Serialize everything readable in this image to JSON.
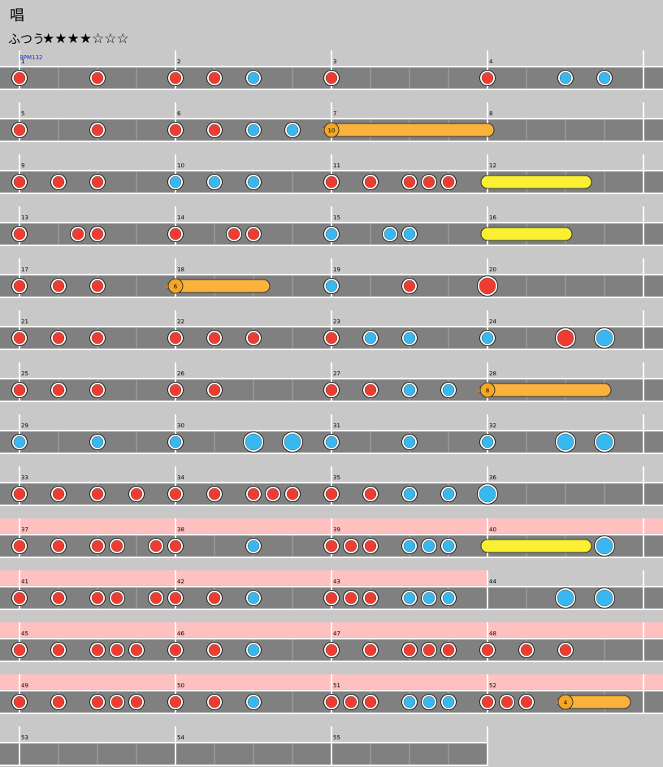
{
  "title": "唱",
  "course": "ふつう",
  "stars": "★★★★☆☆☆",
  "bpm_label": "BPM132",
  "rows": [
    {
      "measures": [
        1,
        2,
        3,
        4
      ],
      "gogo": [
        false,
        false,
        false,
        false
      ],
      "red": [
        0,
        4,
        8,
        10,
        16,
        24
      ],
      "blue": [
        12,
        28,
        30
      ],
      "big_red": [],
      "big_blue": [],
      "rolls": []
    },
    {
      "measures": [
        5,
        6,
        7,
        8
      ],
      "gogo": [
        false,
        false,
        false,
        false
      ],
      "red": [
        0,
        4,
        8,
        10
      ],
      "blue": [
        12,
        14
      ],
      "big_red": [],
      "big_blue": [],
      "rolls": [
        {
          "kind": "balloon",
          "start": 16,
          "end": 24,
          "count": 10
        }
      ]
    },
    {
      "measures": [
        9,
        10,
        11,
        12
      ],
      "gogo": [
        false,
        false,
        false,
        false
      ],
      "red": [
        0,
        2,
        4,
        16,
        18,
        20,
        21,
        22
      ],
      "blue": [
        8,
        10,
        12
      ],
      "big_red": [],
      "big_blue": [],
      "rolls": [
        {
          "kind": "roll",
          "start": 24,
          "end": 29
        }
      ]
    },
    {
      "measures": [
        13,
        14,
        15,
        16
      ],
      "gogo": [
        false,
        false,
        false,
        false
      ],
      "red": [
        0,
        3,
        4,
        8,
        11,
        12
      ],
      "blue": [
        16,
        19,
        20
      ],
      "big_red": [],
      "big_blue": [],
      "rolls": [
        {
          "kind": "roll",
          "start": 24,
          "end": 28
        }
      ]
    },
    {
      "measures": [
        17,
        18,
        19,
        20
      ],
      "gogo": [
        false,
        false,
        false,
        false
      ],
      "red": [
        0,
        2,
        4,
        20
      ],
      "blue": [
        16
      ],
      "big_red": [
        24
      ],
      "big_blue": [],
      "rolls": [
        {
          "kind": "balloon",
          "start": 8,
          "end": 12.5,
          "count": 6
        }
      ]
    },
    {
      "measures": [
        21,
        22,
        23,
        24
      ],
      "gogo": [
        false,
        false,
        false,
        false
      ],
      "red": [
        0,
        2,
        4,
        8,
        10,
        12,
        16
      ],
      "blue": [
        18,
        20,
        24
      ],
      "big_red": [
        28
      ],
      "big_blue": [
        30
      ],
      "rolls": []
    },
    {
      "measures": [
        25,
        26,
        27,
        28
      ],
      "gogo": [
        false,
        false,
        false,
        false
      ],
      "red": [
        0,
        2,
        4,
        8,
        10,
        16,
        18
      ],
      "blue": [
        20,
        22
      ],
      "big_red": [],
      "big_blue": [],
      "rolls": [
        {
          "kind": "balloon",
          "start": 24,
          "end": 30,
          "count": 8
        }
      ]
    },
    {
      "measures": [
        29,
        30,
        31,
        32
      ],
      "gogo": [
        false,
        false,
        false,
        false
      ],
      "red": [],
      "blue": [
        0,
        4,
        8,
        16,
        20,
        24
      ],
      "big_red": [],
      "big_blue": [
        12,
        14,
        28,
        30
      ],
      "rolls": []
    },
    {
      "measures": [
        33,
        34,
        35,
        36
      ],
      "gogo": [
        false,
        false,
        false,
        false
      ],
      "red": [
        0,
        2,
        4,
        6,
        8,
        10,
        12,
        13,
        14,
        16,
        18
      ],
      "blue": [
        20,
        22
      ],
      "big_red": [],
      "big_blue": [
        24
      ],
      "rolls": []
    },
    {
      "measures": [
        37,
        38,
        39,
        40
      ],
      "gogo": [
        true,
        true,
        true,
        true
      ],
      "red": [
        0,
        2,
        4,
        5,
        7,
        8,
        16,
        17,
        18
      ],
      "blue": [
        12,
        20,
        21,
        22
      ],
      "big_red": [],
      "big_blue": [
        30
      ],
      "rolls": [
        {
          "kind": "roll",
          "start": 24,
          "end": 29
        }
      ]
    },
    {
      "measures": [
        41,
        42,
        43,
        44
      ],
      "gogo": [
        true,
        true,
        true,
        false
      ],
      "red": [
        0,
        2,
        4,
        5,
        7,
        8,
        10,
        16,
        17,
        18
      ],
      "blue": [
        12,
        20,
        21,
        22
      ],
      "big_red": [],
      "big_blue": [
        28,
        30
      ],
      "rolls": []
    },
    {
      "measures": [
        45,
        46,
        47,
        48
      ],
      "gogo": [
        true,
        true,
        true,
        true
      ],
      "red": [
        0,
        2,
        4,
        5,
        6,
        8,
        10,
        16,
        18,
        20,
        21,
        22,
        24,
        26,
        28
      ],
      "blue": [
        12
      ],
      "big_red": [],
      "big_blue": [],
      "rolls": []
    },
    {
      "measures": [
        49,
        50,
        51,
        52
      ],
      "gogo": [
        true,
        true,
        true,
        true
      ],
      "red": [
        0,
        2,
        4,
        5,
        6,
        8,
        10,
        16,
        17,
        18,
        24,
        25,
        26
      ],
      "blue": [
        12,
        20,
        21,
        22
      ],
      "big_red": [],
      "big_blue": [],
      "rolls": [
        {
          "kind": "balloon",
          "start": 28,
          "end": 31,
          "count": 4
        }
      ]
    },
    {
      "measures": [
        53,
        54,
        55
      ],
      "gogo": [
        false,
        false,
        false
      ],
      "red": [],
      "blue": [],
      "big_red": [],
      "big_blue": [],
      "rolls": []
    }
  ]
}
